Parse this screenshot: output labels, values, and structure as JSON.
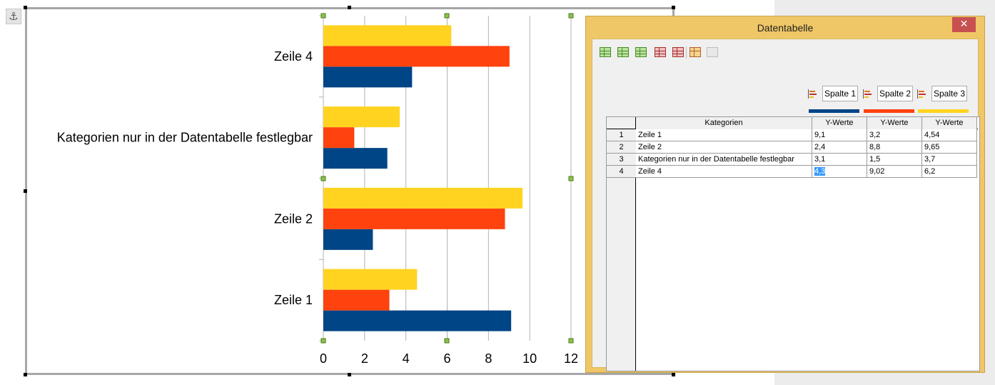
{
  "document": {
    "anchor_icon": "anchor-icon"
  },
  "chart_data": {
    "type": "bar",
    "orientation": "horizontal",
    "categories": [
      "Zeile 1",
      "Zeile 2",
      "Kategorien nur in der Datentabelle festlegbar",
      "Zeile 4"
    ],
    "series": [
      {
        "name": "Spalte 1",
        "color": "#004586",
        "values": [
          9.1,
          2.4,
          3.1,
          4.3
        ]
      },
      {
        "name": "Spalte 2",
        "color": "#ff420e",
        "values": [
          3.2,
          8.8,
          1.5,
          9.02
        ]
      },
      {
        "name": "Spalte 3",
        "color": "#ffd320",
        "values": [
          4.54,
          9.65,
          3.7,
          6.2
        ]
      }
    ],
    "xlim": [
      0,
      12
    ],
    "x_ticks": [
      "0",
      "2",
      "4",
      "6",
      "8",
      "10",
      "12"
    ],
    "grid": true,
    "legend": "none",
    "title": "",
    "xlabel": "",
    "ylabel": ""
  },
  "dialog": {
    "title": "Datentabelle",
    "close_label": "✕",
    "toolbar": [
      {
        "icon": "insert-row-icon"
      },
      {
        "icon": "insert-series-icon"
      },
      {
        "icon": "insert-text-column-icon"
      },
      {
        "icon": "delete-row-icon"
      },
      {
        "icon": "delete-series-icon"
      },
      {
        "icon": "move-series-right-icon"
      },
      {
        "icon": "move-row-down-icon"
      }
    ],
    "series_headers": [
      {
        "name": "Spalte 1",
        "color": "#004586"
      },
      {
        "name": "Spalte 2",
        "color": "#ff420e"
      },
      {
        "name": "Spalte 3",
        "color": "#ffd320"
      }
    ],
    "table": {
      "columns": [
        "Kategorien",
        "Y-Werte",
        "Y-Werte",
        "Y-Werte"
      ],
      "rows": [
        {
          "num": "1",
          "cells": [
            "Zeile 1",
            "9,1",
            "3,2",
            "4,54"
          ]
        },
        {
          "num": "2",
          "cells": [
            "Zeile 2",
            "2,4",
            "8,8",
            "9,65"
          ]
        },
        {
          "num": "3",
          "cells": [
            "Kategorien nur in der Datentabelle festlegbar",
            "3,1",
            "1,5",
            "3,7"
          ]
        },
        {
          "num": "4",
          "cells": [
            "Zeile 4",
            "4,3",
            "9,02",
            "6,2"
          ]
        }
      ],
      "selected_cell": "4,3"
    }
  }
}
